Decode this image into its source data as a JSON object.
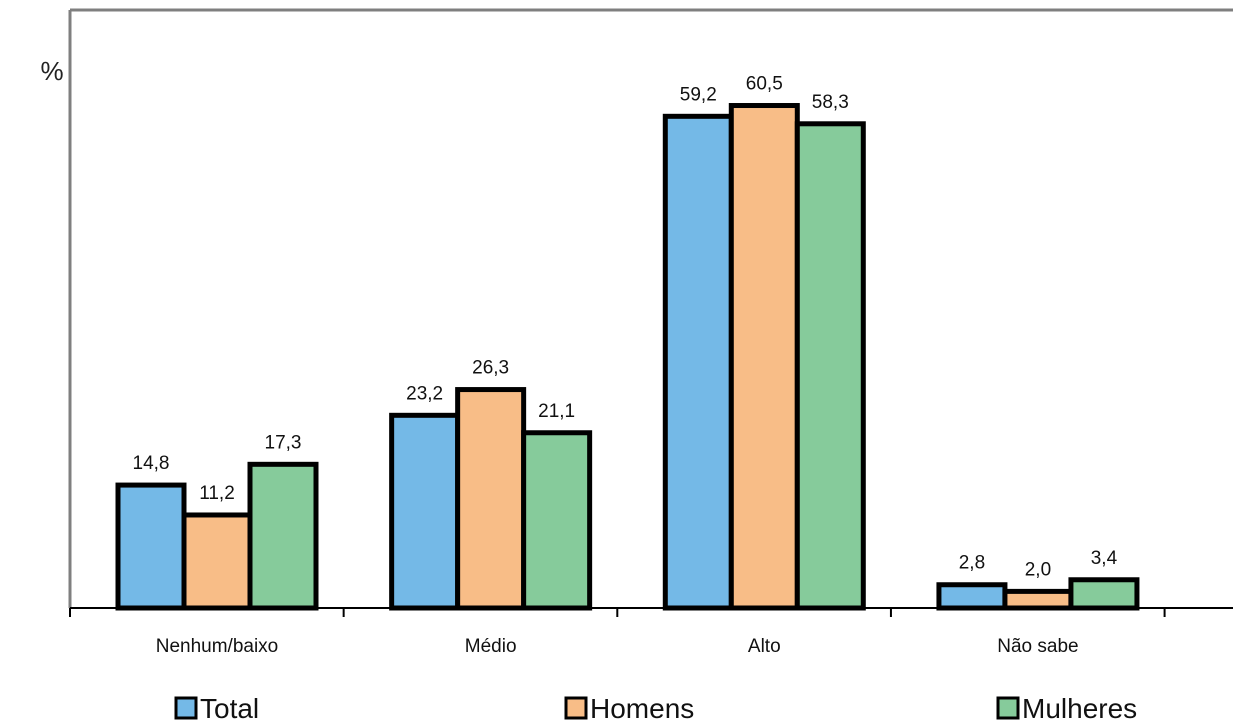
{
  "chart_data": {
    "type": "bar",
    "ylabel": "%",
    "categories": [
      "Nenhum/baixo",
      "Médio",
      "Alto",
      "Não sabe"
    ],
    "series": [
      {
        "name": "Total",
        "color": "#74b9e7",
        "values": [
          14.8,
          23.2,
          59.2,
          2.8
        ],
        "labels": [
          "14,8",
          "23,2",
          "59,2",
          "2,8"
        ]
      },
      {
        "name": "Homens",
        "color": "#f8bd87",
        "values": [
          11.2,
          26.3,
          60.5,
          2.0
        ],
        "labels": [
          "11,2",
          "26,3",
          "60,5",
          "2,0"
        ]
      },
      {
        "name": "Mulheres",
        "color": "#86cb9b",
        "values": [
          17.3,
          21.1,
          58.3,
          3.4
        ],
        "labels": [
          "17,3",
          "21,1",
          "58,3",
          "3,4"
        ]
      }
    ],
    "ylim": [
      0,
      72
    ],
    "grid": false,
    "legend_position": "bottom"
  }
}
